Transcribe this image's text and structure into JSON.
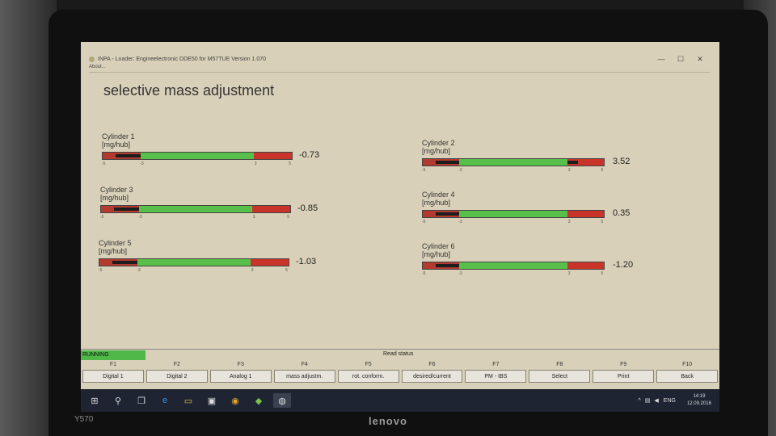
{
  "window": {
    "title": "INPA - Loader: Engineelectronic DDE50 for M57TUE Version 1.070",
    "menu_about": "About...",
    "minimize": "—",
    "maximize": "☐",
    "close": "✕"
  },
  "page_title": "selective mass adjustment",
  "cylinders": [
    {
      "name": "Cylinder 1",
      "unit": "[mg/hub]",
      "value": "-0.73",
      "fill_fraction": 0.22
    },
    {
      "name": "Cylinder 2",
      "unit": "[mg/hub]",
      "value": "3.52",
      "fill_fraction": 0.85
    },
    {
      "name": "Cylinder 3",
      "unit": "[mg/hub]",
      "value": "-0.85",
      "fill_fraction": 0.21
    },
    {
      "name": "Cylinder 4",
      "unit": "[mg/hub]",
      "value": "0.35",
      "fill_fraction": 0.53
    },
    {
      "name": "Cylinder 5",
      "unit": "[mg/hub]",
      "value": "-1.03",
      "fill_fraction": 0.4
    },
    {
      "name": "Cylinder 6",
      "unit": "[mg/hub]",
      "value": "-1.20",
      "fill_fraction": 0.38
    }
  ],
  "scale_ticks": [
    "-5",
    "-3",
    "3",
    "5"
  ],
  "status": {
    "running": "RUNNING",
    "text": "Read status"
  },
  "fkeys": [
    {
      "num": "F1",
      "label": "Digital 1"
    },
    {
      "num": "F2",
      "label": "Digital 2"
    },
    {
      "num": "F3",
      "label": "Analog 1"
    },
    {
      "num": "F4",
      "label": "mass adjustm."
    },
    {
      "num": "F5",
      "label": "rot. conform."
    },
    {
      "num": "F6",
      "label": "desired/current"
    },
    {
      "num": "F7",
      "label": "PM - IBS"
    },
    {
      "num": "F8",
      "label": "Select"
    },
    {
      "num": "F9",
      "label": "Print"
    },
    {
      "num": "F10",
      "label": "Back"
    }
  ],
  "taskbar": {
    "lang": "ENG",
    "time": "14:19",
    "date": "12.09.2016"
  },
  "device": {
    "brand": "lenovo",
    "model": "Y570"
  },
  "colors": {
    "red": "#c9342a",
    "green": "#58c04a",
    "screen_bg": "#d8d0b8"
  }
}
